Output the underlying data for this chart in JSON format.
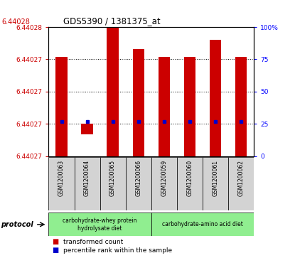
{
  "title": "GDS5390 / 1381375_at",
  "samples": [
    "GSM1200063",
    "GSM1200064",
    "GSM1200065",
    "GSM1200066",
    "GSM1200059",
    "GSM1200060",
    "GSM1200061",
    "GSM1200062"
  ],
  "red_pct_bottom": [
    0,
    17,
    0,
    0,
    0,
    0,
    0,
    0
  ],
  "red_pct_top": [
    77,
    25,
    100,
    83,
    77,
    77,
    90,
    77
  ],
  "blue_pct": [
    27,
    27,
    27,
    27,
    27,
    27,
    27,
    27
  ],
  "right_yticks": [
    0,
    25,
    50,
    75,
    100
  ],
  "left_ytick_pcts": [
    0,
    25,
    50,
    75,
    100
  ],
  "left_ytick_labels": [
    "6.44027",
    "6.44027",
    "6.44027",
    "6.44027",
    "6.44028"
  ],
  "top_left_label": "6.44028",
  "protocol_labels": [
    "carbohydrate-whey protein\nhydrolysate diet",
    "carbohydrate-amino acid diet"
  ],
  "protocol_group_sizes": [
    4,
    4
  ],
  "protocol_color": "#90ee90",
  "bar_color": "#cc0000",
  "blue_color": "#0000cc",
  "sample_bg": "#d3d3d3",
  "legend_red": "transformed count",
  "legend_blue": "percentile rank within the sample",
  "protocol_text": "protocol",
  "grid_pcts": [
    25,
    50,
    75
  ]
}
